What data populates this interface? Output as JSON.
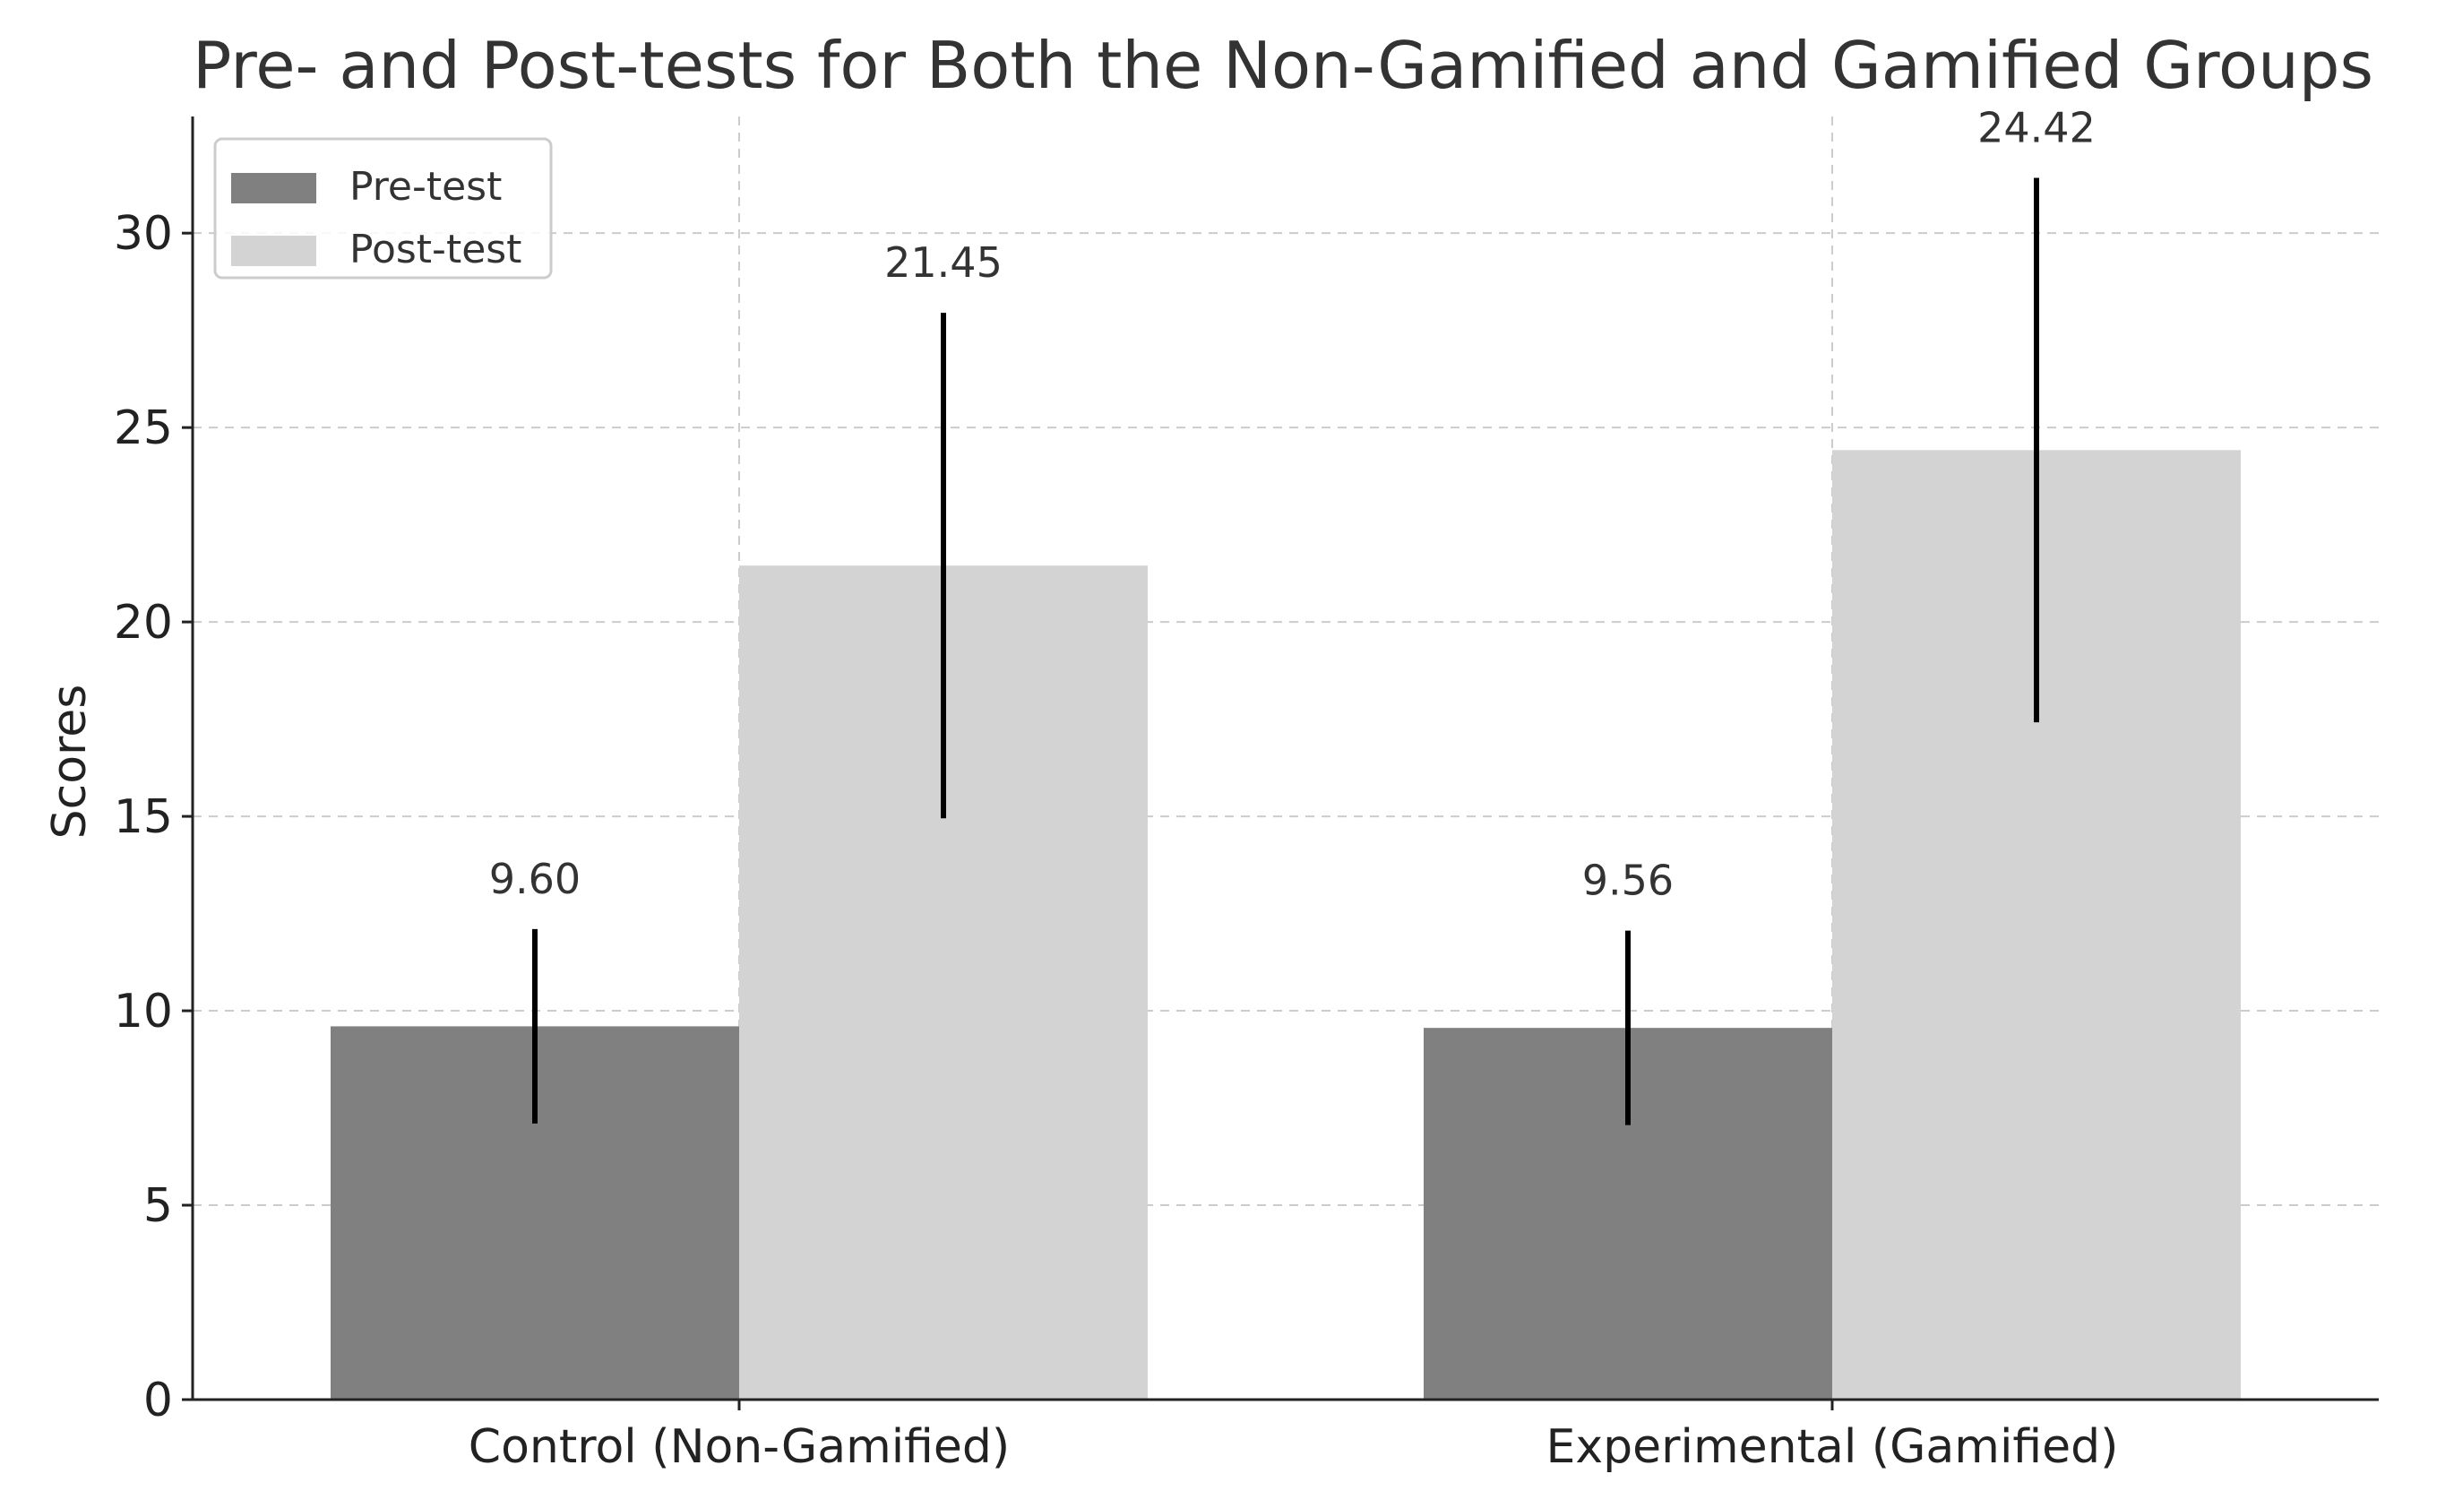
{
  "chart_data": {
    "type": "bar",
    "title": "Pre- and Post-tests for Both the Non-Gamified and Gamified Groups",
    "xlabel": "",
    "ylabel": "Scores",
    "categories": [
      "Control (Non-Gamified)",
      "Experimental (Gamified)"
    ],
    "series": [
      {
        "name": "Pre-test",
        "color": "#808080",
        "values": [
          9.6,
          9.56
        ],
        "value_labels": [
          "9.60",
          "9.56"
        ],
        "error": [
          2.5,
          2.5
        ]
      },
      {
        "name": "Post-test",
        "color": "#d3d3d3",
        "values": [
          21.45,
          24.42
        ],
        "value_labels": [
          "21.45",
          "24.42"
        ],
        "error": [
          6.5,
          7.0
        ]
      }
    ],
    "ylim": [
      0,
      33
    ],
    "yticks": [
      0,
      5,
      10,
      15,
      20,
      25,
      30
    ],
    "grid": true,
    "legend_position": "top-left"
  }
}
